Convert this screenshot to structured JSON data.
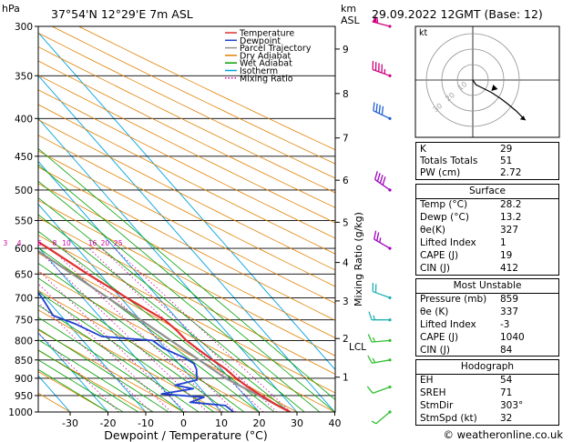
{
  "header": {
    "hpa_label": "hPa",
    "location": "37°54'N 12°29'E 7m ASL",
    "km_label": "km",
    "asl_label": "ASL",
    "datetime": "29.09.2022 12GMT (Base: 12)"
  },
  "legend": [
    {
      "label": "Temperature",
      "color": "#e03030"
    },
    {
      "label": "Dewpoint",
      "color": "#2040d0"
    },
    {
      "label": "Parcel Trajectory",
      "color": "#909090"
    },
    {
      "label": "Dry Adiabat",
      "color": "#e08000"
    },
    {
      "label": "Wet Adiabat",
      "color": "#00a000"
    },
    {
      "label": "Isotherm",
      "color": "#00a0e0"
    },
    {
      "label": "Mixing Ratio",
      "color": "#d000a0"
    }
  ],
  "axes": {
    "xlabel": "Dewpoint / Temperature (°C)",
    "mixing_label": "Mixing Ratio (g/kg)",
    "lcl_label": "LCL"
  },
  "chart_data": {
    "type": "line",
    "pressure_levels": [
      300,
      350,
      400,
      450,
      500,
      550,
      600,
      650,
      700,
      750,
      800,
      850,
      900,
      950,
      1000
    ],
    "x_ticks": [
      -30,
      -20,
      -10,
      0,
      10,
      20,
      30,
      40
    ],
    "km_ticks": [
      {
        "km": 1,
        "p": 897
      },
      {
        "km": 2,
        "p": 795
      },
      {
        "km": 3,
        "p": 707
      },
      {
        "km": 4,
        "p": 627
      },
      {
        "km": 5,
        "p": 553
      },
      {
        "km": 6,
        "p": 485
      },
      {
        "km": 7,
        "p": 425
      },
      {
        "km": 8,
        "p": 370
      },
      {
        "km": 9,
        "p": 322
      }
    ],
    "mixing_ratio_labels": [
      "1",
      "2",
      "3",
      "4",
      "6",
      "8",
      "10",
      "16",
      "20",
      "25"
    ],
    "series": [
      {
        "name": "Temperature",
        "points": [
          [
            1000,
            28.2
          ],
          [
            975,
            26.0
          ],
          [
            950,
            24.4
          ],
          [
            925,
            22.8
          ],
          [
            900,
            21.8
          ],
          [
            875,
            21.2
          ],
          [
            850,
            19.8
          ],
          [
            825,
            18.6
          ],
          [
            800,
            17.4
          ],
          [
            775,
            17.2
          ],
          [
            750,
            16.4
          ],
          [
            725,
            14.0
          ],
          [
            700,
            11.6
          ],
          [
            650,
            6.8
          ],
          [
            600,
            2.4
          ],
          [
            550,
            -2.8
          ],
          [
            500,
            -7.2
          ],
          [
            450,
            -12.6
          ],
          [
            400,
            -19.6
          ],
          [
            350,
            -27.2
          ],
          [
            300,
            -36.2
          ]
        ]
      },
      {
        "name": "Dewpoint",
        "points": [
          [
            1000,
            13.2
          ],
          [
            980,
            12.6
          ],
          [
            970,
            4.0
          ],
          [
            955,
            8.8
          ],
          [
            945,
            -1.6
          ],
          [
            930,
            8.0
          ],
          [
            920,
            4.0
          ],
          [
            905,
            11.0
          ],
          [
            875,
            13.4
          ],
          [
            860,
            14.0
          ],
          [
            845,
            13.0
          ],
          [
            820,
            9.5
          ],
          [
            800,
            8.5
          ],
          [
            790,
            -4.0
          ],
          [
            760,
            -8.0
          ],
          [
            740,
            -12.0
          ],
          [
            700,
            -10.8
          ],
          [
            650,
            -10.0
          ],
          [
            620,
            -21.0
          ],
          [
            600,
            -22.0
          ],
          [
            550,
            -15.0
          ],
          [
            545,
            -22.0
          ],
          [
            500,
            -32.0
          ],
          [
            450,
            -33.0
          ],
          [
            400,
            -48.0
          ],
          [
            385,
            -48.0
          ],
          [
            375,
            -55.0
          ],
          [
            370,
            -60.0
          ],
          [
            365,
            -54.0
          ],
          [
            360,
            -62.0
          ],
          [
            355,
            -56.0
          ],
          [
            345,
            -70.0
          ],
          [
            335,
            -65.0
          ],
          [
            320,
            -58.0
          ],
          [
            310,
            -60.0
          ],
          [
            300,
            -64.0
          ]
        ]
      },
      {
        "name": "Parcel Trajectory",
        "points": [
          [
            1000,
            28.2
          ],
          [
            900,
            19.0
          ],
          [
            795,
            13.0
          ],
          [
            700,
            6.6
          ],
          [
            600,
            -1.4
          ],
          [
            500,
            -10.8
          ],
          [
            400,
            -23.4
          ]
        ]
      }
    ],
    "wind_barbs": [
      {
        "p": 1000,
        "dir": 230,
        "speed": 5
      },
      {
        "p": 925,
        "dir": 250,
        "speed": 10
      },
      {
        "p": 850,
        "dir": 260,
        "speed": 15
      },
      {
        "p": 800,
        "dir": 265,
        "speed": 15
      },
      {
        "p": 750,
        "dir": 270,
        "speed": 15
      },
      {
        "p": 700,
        "dir": 290,
        "speed": 20
      },
      {
        "p": 600,
        "dir": 300,
        "speed": 25
      },
      {
        "p": 500,
        "dir": 305,
        "speed": 40
      },
      {
        "p": 400,
        "dir": 295,
        "speed": 40
      },
      {
        "p": 350,
        "dir": 290,
        "speed": 45
      },
      {
        "p": 300,
        "dir": 285,
        "speed": 55
      }
    ],
    "hodograph": {
      "label": "kt",
      "ring_labels": [
        "10",
        "20",
        "30"
      ],
      "points": [
        [
          0,
          0
        ],
        [
          2,
          -3
        ],
        [
          6,
          -5
        ],
        [
          12,
          -8
        ],
        [
          18,
          -12
        ],
        [
          22,
          -15
        ],
        [
          28,
          -20
        ],
        [
          34,
          -26
        ]
      ]
    }
  },
  "indices": {
    "top": [
      {
        "k": "K",
        "v": "29"
      },
      {
        "k": "Totals Totals",
        "v": "51"
      },
      {
        "k": "PW (cm)",
        "v": "2.72"
      }
    ],
    "surface_title": "Surface",
    "surface": [
      {
        "k": "Temp (°C)",
        "v": "28.2"
      },
      {
        "k": "Dewp (°C)",
        "v": "13.2"
      },
      {
        "k": "θe(K)",
        "v": "327"
      },
      {
        "k": "Lifted Index",
        "v": "1"
      },
      {
        "k": "CAPE (J)",
        "v": "19"
      },
      {
        "k": "CIN (J)",
        "v": "412"
      }
    ],
    "mu_title": "Most Unstable",
    "mu": [
      {
        "k": "Pressure (mb)",
        "v": "859"
      },
      {
        "k": "θe (K)",
        "v": "337"
      },
      {
        "k": "Lifted Index",
        "v": "-3"
      },
      {
        "k": "CAPE (J)",
        "v": "1040"
      },
      {
        "k": "CIN (J)",
        "v": "84"
      }
    ],
    "hodo_title": "Hodograph",
    "hodo": [
      {
        "k": "EH",
        "v": "54"
      },
      {
        "k": "SREH",
        "v": "71"
      },
      {
        "k": "StmDir",
        "v": "303°"
      },
      {
        "k": "StmSpd (kt)",
        "v": "32"
      }
    ]
  },
  "copyright": "© weatheronline.co.uk"
}
